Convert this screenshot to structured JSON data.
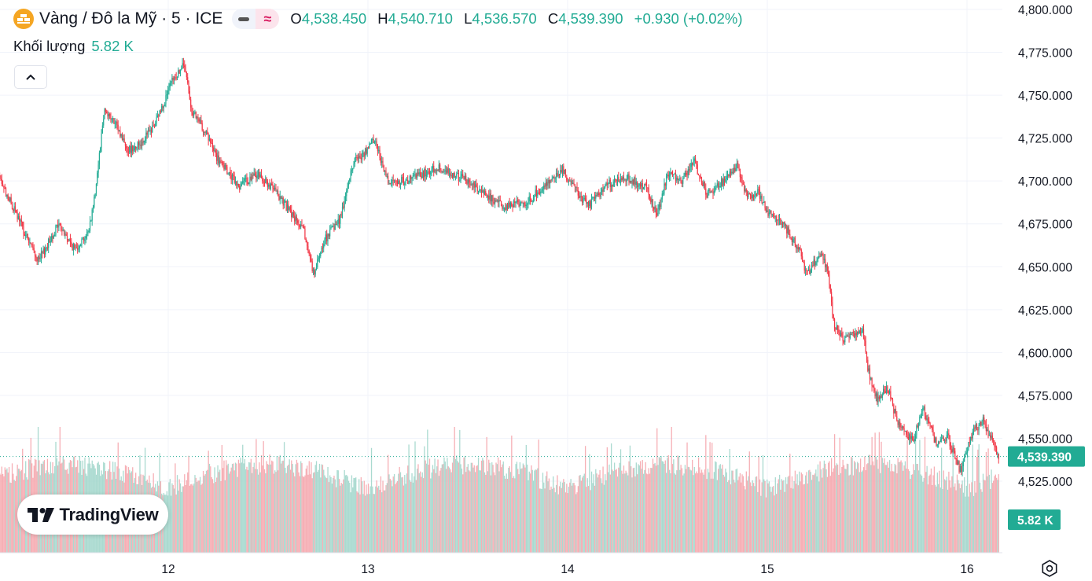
{
  "header": {
    "symbol_title": "Vàng / Đô la Mỹ · 5 · ICE",
    "ohlc": {
      "o_label": "O",
      "o_value": "4,538.450",
      "h_label": "H",
      "h_value": "4,540.710",
      "l_label": "L",
      "l_value": "4,536.570",
      "c_label": "C",
      "c_value": "4,539.390",
      "change": "+0.930 (+0.02%)"
    }
  },
  "volume_legend": {
    "label": "Khối lượng",
    "value": "5.82 K"
  },
  "logo": {
    "text": "TradingView"
  },
  "colors": {
    "up": "#22ab94",
    "down": "#f23645",
    "up_volume": "#a1d6cb",
    "down_volume": "#f5a6ad",
    "grid": "#f0f3fa",
    "text": "#131722",
    "price_badge": "#22ab94"
  },
  "chart_data": {
    "type": "candlestick",
    "timeframe": "5",
    "exchange": "ICE",
    "y_axis": {
      "side": "right",
      "range": [
        4512,
        4802
      ],
      "ticks": [
        "4,800.000",
        "4,775.000",
        "4,750.000",
        "4,725.000",
        "4,700.000",
        "4,675.000",
        "4,650.000",
        "4,625.000",
        "4,600.000",
        "4,575.000",
        "4,550.000",
        "4,525.000"
      ]
    },
    "x_axis": {
      "day_labels": [
        "12",
        "13",
        "14",
        "15",
        "16"
      ]
    },
    "grid": true,
    "last_price": {
      "value": 4539.39,
      "label": "4,539.390"
    },
    "last_volume": {
      "label": "5.82 K"
    },
    "price_path": [
      [
        0,
        4690
      ],
      [
        0.08,
        4678
      ],
      [
        0.15,
        4702
      ],
      [
        0.22,
        4685
      ],
      [
        0.35,
        4653
      ],
      [
        0.45,
        4675
      ],
      [
        0.53,
        4660
      ],
      [
        0.6,
        4670
      ],
      [
        0.63,
        4690
      ],
      [
        0.68,
        4742
      ],
      [
        0.74,
        4732
      ],
      [
        0.8,
        4718
      ],
      [
        0.86,
        4722
      ],
      [
        0.93,
        4732
      ],
      [
        1.02,
        4758
      ],
      [
        1.08,
        4768
      ],
      [
        1.12,
        4740
      ],
      [
        1.18,
        4730
      ],
      [
        1.25,
        4712
      ],
      [
        1.35,
        4697
      ],
      [
        1.45,
        4704
      ],
      [
        1.55,
        4692
      ],
      [
        1.68,
        4670
      ],
      [
        1.73,
        4645
      ],
      [
        1.78,
        4665
      ],
      [
        1.86,
        4678
      ],
      [
        1.93,
        4712
      ],
      [
        2.0,
        4718
      ],
      [
        2.03,
        4725
      ],
      [
        2.1,
        4700
      ],
      [
        2.2,
        4700
      ],
      [
        2.35,
        4708
      ],
      [
        2.5,
        4700
      ],
      [
        2.68,
        4685
      ],
      [
        2.8,
        4688
      ],
      [
        2.97,
        4707
      ],
      [
        3.1,
        4685
      ],
      [
        3.2,
        4698
      ],
      [
        3.3,
        4702
      ],
      [
        3.4,
        4695
      ],
      [
        3.45,
        4680
      ],
      [
        3.5,
        4705
      ],
      [
        3.57,
        4700
      ],
      [
        3.63,
        4712
      ],
      [
        3.7,
        4692
      ],
      [
        3.8,
        4702
      ],
      [
        3.85,
        4710
      ],
      [
        3.9,
        4690
      ],
      [
        3.95,
        4695
      ],
      [
        4.0,
        4682
      ],
      [
        4.08,
        4675
      ],
      [
        4.16,
        4660
      ],
      [
        4.2,
        4645
      ],
      [
        4.26,
        4658
      ],
      [
        4.3,
        4650
      ],
      [
        4.33,
        4618
      ],
      [
        4.38,
        4608
      ],
      [
        4.48,
        4612
      ],
      [
        4.5,
        4592
      ],
      [
        4.55,
        4572
      ],
      [
        4.6,
        4580
      ],
      [
        4.65,
        4560
      ],
      [
        4.73,
        4548
      ],
      [
        4.78,
        4568
      ],
      [
        4.85,
        4545
      ],
      [
        4.9,
        4552
      ],
      [
        4.97,
        4530
      ],
      [
        5.03,
        4555
      ],
      [
        5.08,
        4560
      ],
      [
        5.13,
        4548
      ],
      [
        5.16,
        4539.39
      ]
    ]
  }
}
